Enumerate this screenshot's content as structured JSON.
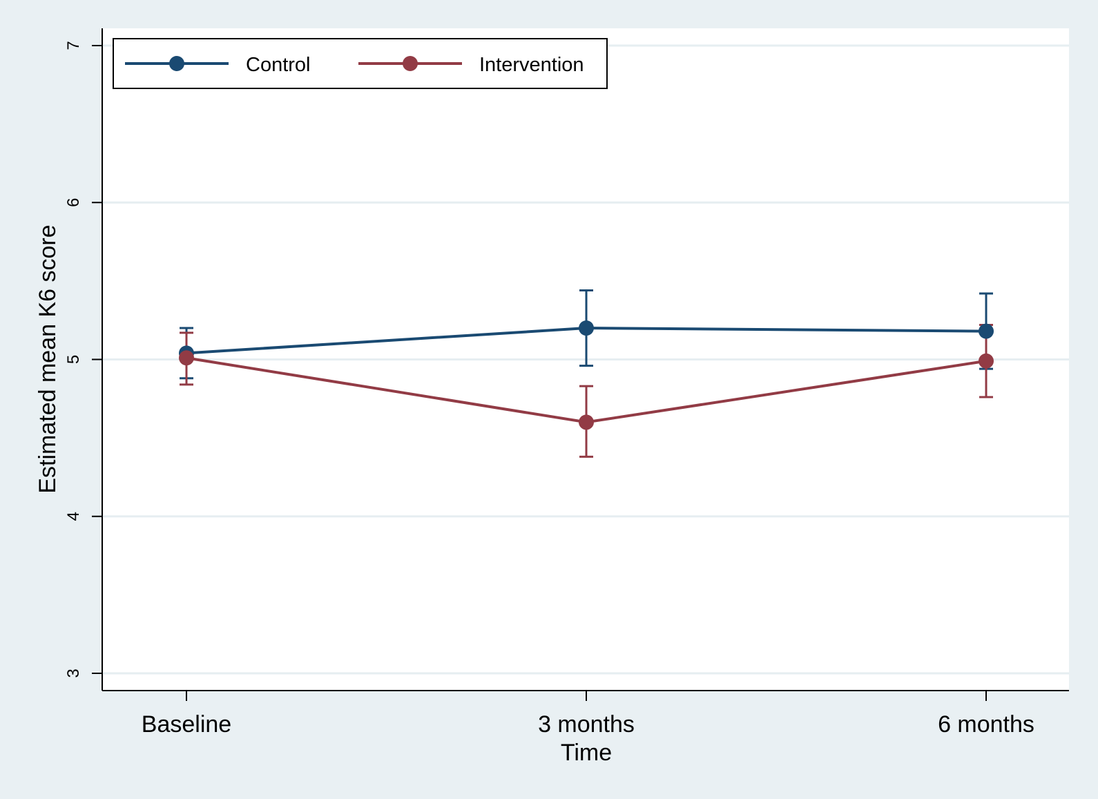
{
  "chart_data": {
    "type": "line",
    "xlabel": "Time",
    "ylabel": "Estimated mean K6 score",
    "categories": [
      "Baseline",
      "3 months",
      "6 months"
    ],
    "ylim": [
      3,
      7
    ],
    "yticks": [
      3,
      4,
      5,
      6,
      7
    ],
    "grid": true,
    "legend_position": "top-left",
    "series": [
      {
        "name": "Control",
        "color": "#1a4a72",
        "values": [
          5.04,
          5.2,
          5.18
        ],
        "ci_low": [
          4.88,
          4.96,
          4.94
        ],
        "ci_high": [
          5.2,
          5.44,
          5.42
        ]
      },
      {
        "name": "Intervention",
        "color": "#923b45",
        "values": [
          5.01,
          4.6,
          4.99
        ],
        "ci_low": [
          4.84,
          4.38,
          4.76
        ],
        "ci_high": [
          5.17,
          4.83,
          5.22
        ]
      }
    ]
  }
}
